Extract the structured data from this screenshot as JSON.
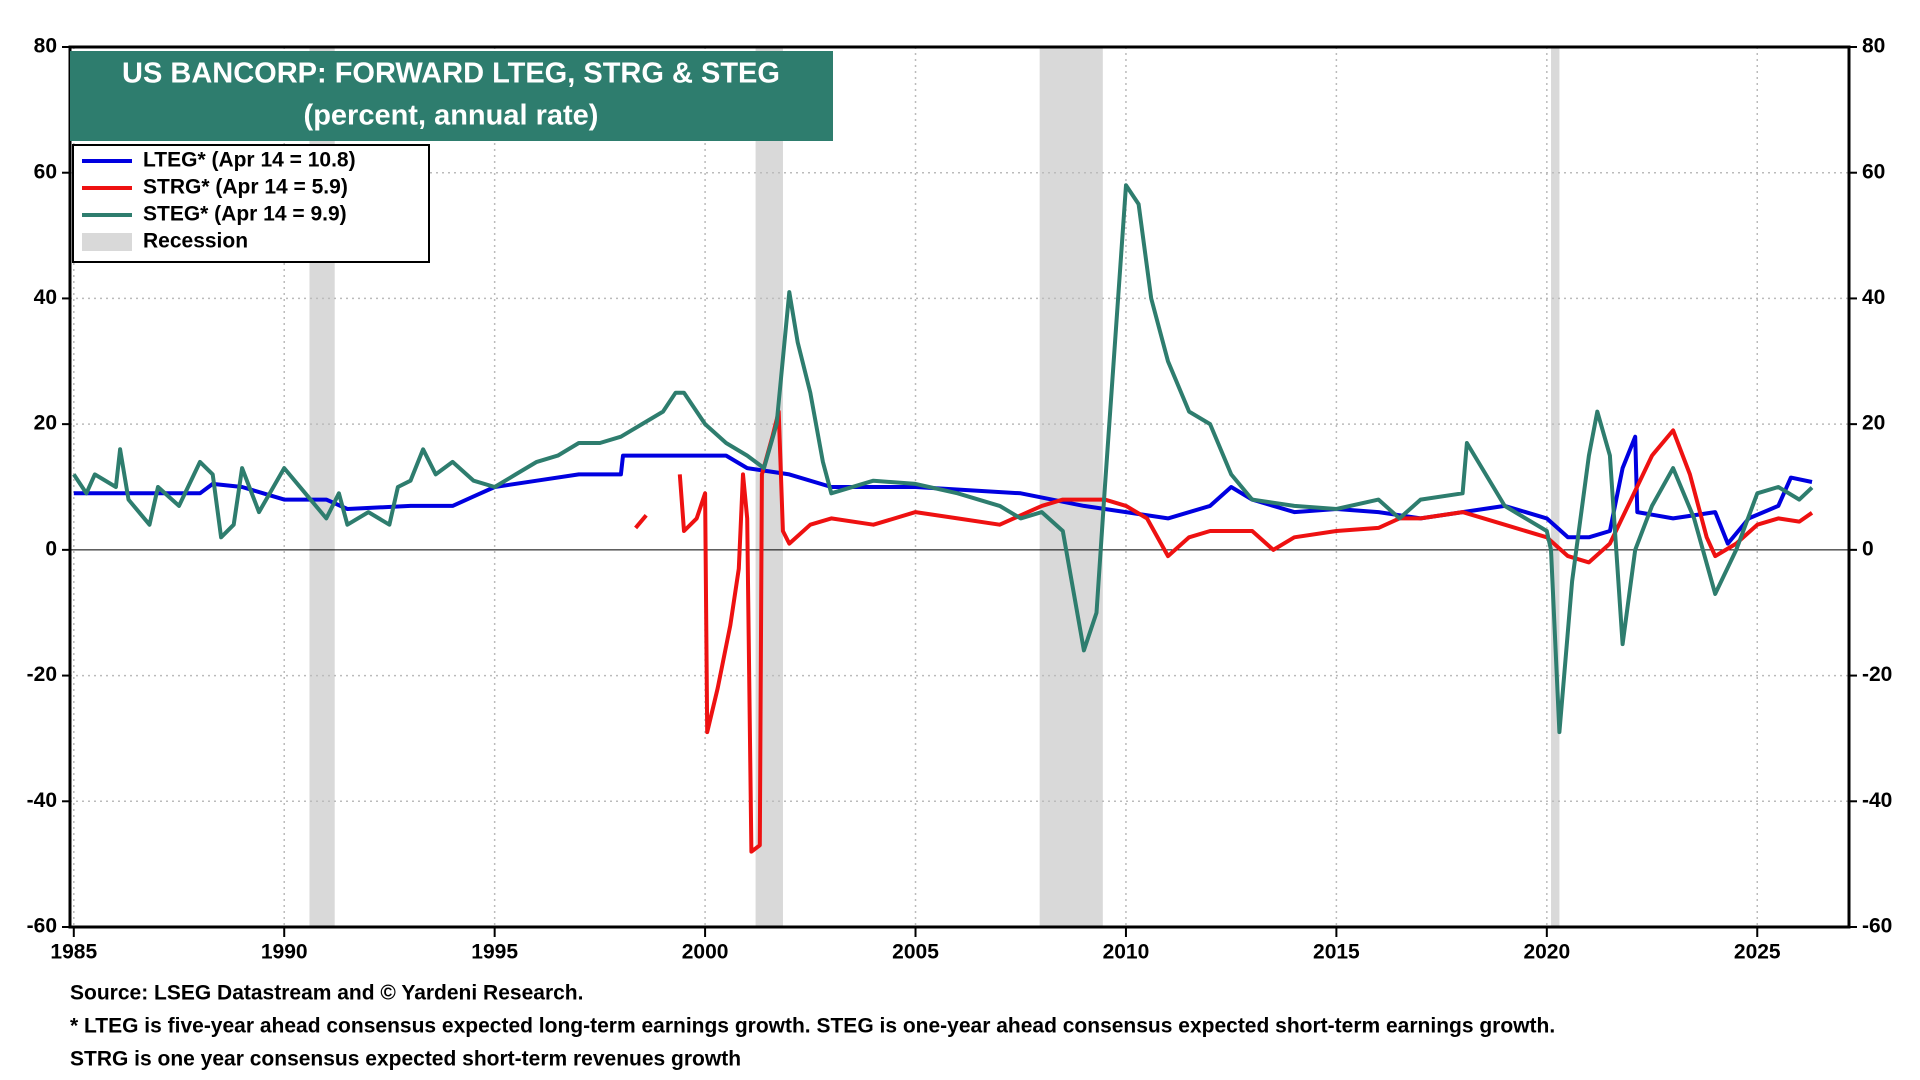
{
  "chart_data": {
    "type": "line",
    "title": "US BANCORP: FORWARD LTEG, STRG & STEG",
    "subtitle": "(percent, annual rate)",
    "xlim": [
      1984.91,
      2027.18
    ],
    "xticks": [
      1985,
      1990,
      1995,
      2000,
      2005,
      2010,
      2015,
      2020,
      2025
    ],
    "ylim": [
      -60,
      80
    ],
    "yticks": [
      -60,
      -40,
      -20,
      0,
      20,
      40,
      60,
      80
    ],
    "grid": true,
    "legend": "upper left",
    "recession_name": "Recession",
    "recession_color": "#d9d9d9",
    "recessions": [
      [
        1990.6,
        1991.2
      ],
      [
        2001.2,
        2001.85
      ],
      [
        2007.95,
        2009.45
      ],
      [
        2020.1,
        2020.3
      ]
    ],
    "series": [
      {
        "name": "LTEG* (Apr 14 = 10.8)",
        "color": "#0000e0",
        "x": [
          1985,
          1988,
          1988.3,
          1989,
          1989.5,
          1990,
          1991,
          1991.5,
          1993,
          1994,
          1994.5,
          1995,
          1996,
          1997,
          1998,
          1998.05,
          1999.5,
          2000.5,
          2001,
          2002,
          2003,
          2005,
          2007.5,
          2009,
          2010,
          2011,
          2012,
          2012.5,
          2013,
          2014,
          2015,
          2016,
          2017,
          2018,
          2019,
          2020,
          2020.5,
          2021,
          2021.5,
          2021.8,
          2022.1,
          2022.15,
          2023,
          2024,
          2024.3,
          2024.8,
          2025.5,
          2025.8,
          2026.3
        ],
        "values": [
          9,
          9,
          10.5,
          10,
          9,
          8,
          8,
          6.5,
          7,
          7,
          8.5,
          10,
          11,
          12,
          12,
          15,
          15,
          15,
          13,
          12,
          10,
          10,
          9,
          7,
          6,
          5,
          7,
          10,
          8,
          6,
          6.5,
          6,
          5,
          6,
          7,
          5,
          2,
          2,
          3,
          13,
          18,
          6,
          5,
          6,
          1,
          5,
          7,
          11.5,
          10.8
        ]
      },
      {
        "name": "STRG* (Apr 14 = 5.9)",
        "color": "#ee1111",
        "x": [
          1998.35,
          1998.6,
          1998.9,
          1999.4,
          1999.5,
          1999.8,
          2000.0,
          2000.05,
          2000.3,
          2000.6,
          2000.8,
          2000.9,
          2001.0,
          2001.1,
          2001.3,
          2001.35,
          2001.6,
          2001.75,
          2001.85,
          2002.0,
          2002.5,
          2003,
          2004,
          2005,
          2006,
          2007,
          2008,
          2008.5,
          2009.5,
          2010,
          2010.5,
          2011,
          2011.5,
          2012,
          2013,
          2013.5,
          2014,
          2015,
          2016,
          2016.5,
          2017,
          2018,
          2019,
          2020,
          2020.5,
          2021,
          2021.5,
          2022,
          2022.5,
          2023,
          2023.4,
          2023.8,
          2024,
          2024.5,
          2025,
          2025.5,
          2026,
          2026.3
        ],
        "values": [
          3.5,
          5.5,
          null,
          12,
          3,
          5,
          9,
          -29,
          -22,
          -12,
          -3,
          12,
          5,
          -48,
          -47,
          12,
          18,
          22,
          3,
          1,
          4,
          5,
          4,
          6,
          5,
          4,
          7,
          8,
          8,
          7,
          5,
          -1,
          2,
          3,
          3,
          0,
          2,
          3,
          3.5,
          5,
          5,
          6,
          4,
          2,
          -1,
          -2,
          1,
          8,
          15,
          19,
          12,
          2,
          -1,
          1,
          4,
          5,
          4.5,
          5.9
        ]
      },
      {
        "name": "STEG* (Apr 14 = 9.9)",
        "color": "#2e7d6e",
        "x": [
          1985,
          1985.3,
          1985.5,
          1986,
          1986.1,
          1986.3,
          1986.8,
          1987,
          1987.5,
          1988,
          1988.3,
          1988.5,
          1988.8,
          1989,
          1989.4,
          1990,
          1990.5,
          1991,
          1991.3,
          1991.5,
          1992,
          1992.5,
          1992.7,
          1993,
          1993.3,
          1993.6,
          1994,
          1994.5,
          1995,
          1995.5,
          1996,
          1996.5,
          1997,
          1997.5,
          1998,
          1998.5,
          1999,
          1999.3,
          1999.5,
          2000,
          2000.5,
          2001,
          2001.4,
          2001.7,
          2002,
          2002.2,
          2002.5,
          2002.8,
          2003,
          2004,
          2005,
          2006,
          2007,
          2007.5,
          2008,
          2008.5,
          2009,
          2009.3,
          2009.5,
          2010,
          2010.3,
          2010.6,
          2011,
          2011.5,
          2012,
          2012.5,
          2013,
          2014,
          2015,
          2016,
          2016.5,
          2017,
          2018,
          2018.1,
          2019,
          2020,
          2020.1,
          2020.3,
          2020.6,
          2021,
          2021.2,
          2021.5,
          2021.8,
          2022.1,
          2022.5,
          2023,
          2023.5,
          2024,
          2024.5,
          2025,
          2025.5,
          2026,
          2026.3
        ],
        "values": [
          12,
          9,
          12,
          10,
          16,
          8,
          4,
          10,
          7,
          14,
          12,
          2,
          4,
          13,
          6,
          13,
          9,
          5,
          9,
          4,
          6,
          4,
          10,
          11,
          16,
          12,
          14,
          11,
          10,
          12,
          14,
          15,
          17,
          17,
          18,
          20,
          22,
          25,
          25,
          20,
          17,
          15,
          13,
          20,
          41,
          33,
          25,
          14,
          9,
          11,
          10.5,
          9,
          7,
          5,
          6,
          3,
          -16,
          -10,
          10,
          58,
          55,
          40,
          30,
          22,
          20,
          12,
          8,
          7,
          6.5,
          8,
          5,
          8,
          9,
          17,
          7,
          3,
          0,
          -29,
          -5,
          15,
          22,
          15,
          -15,
          0,
          7,
          13,
          5,
          -7,
          0,
          9,
          10,
          8,
          9.9
        ]
      }
    ],
    "source": "Source: LSEG Datastream and © Yardeni Research.",
    "notes": [
      "* LTEG is five-year ahead consensus expected long-term earnings growth. STEG is one-year ahead consensus expected short-term earnings growth.",
      "STRG is one year consensus expected short-term revenues growth"
    ]
  }
}
